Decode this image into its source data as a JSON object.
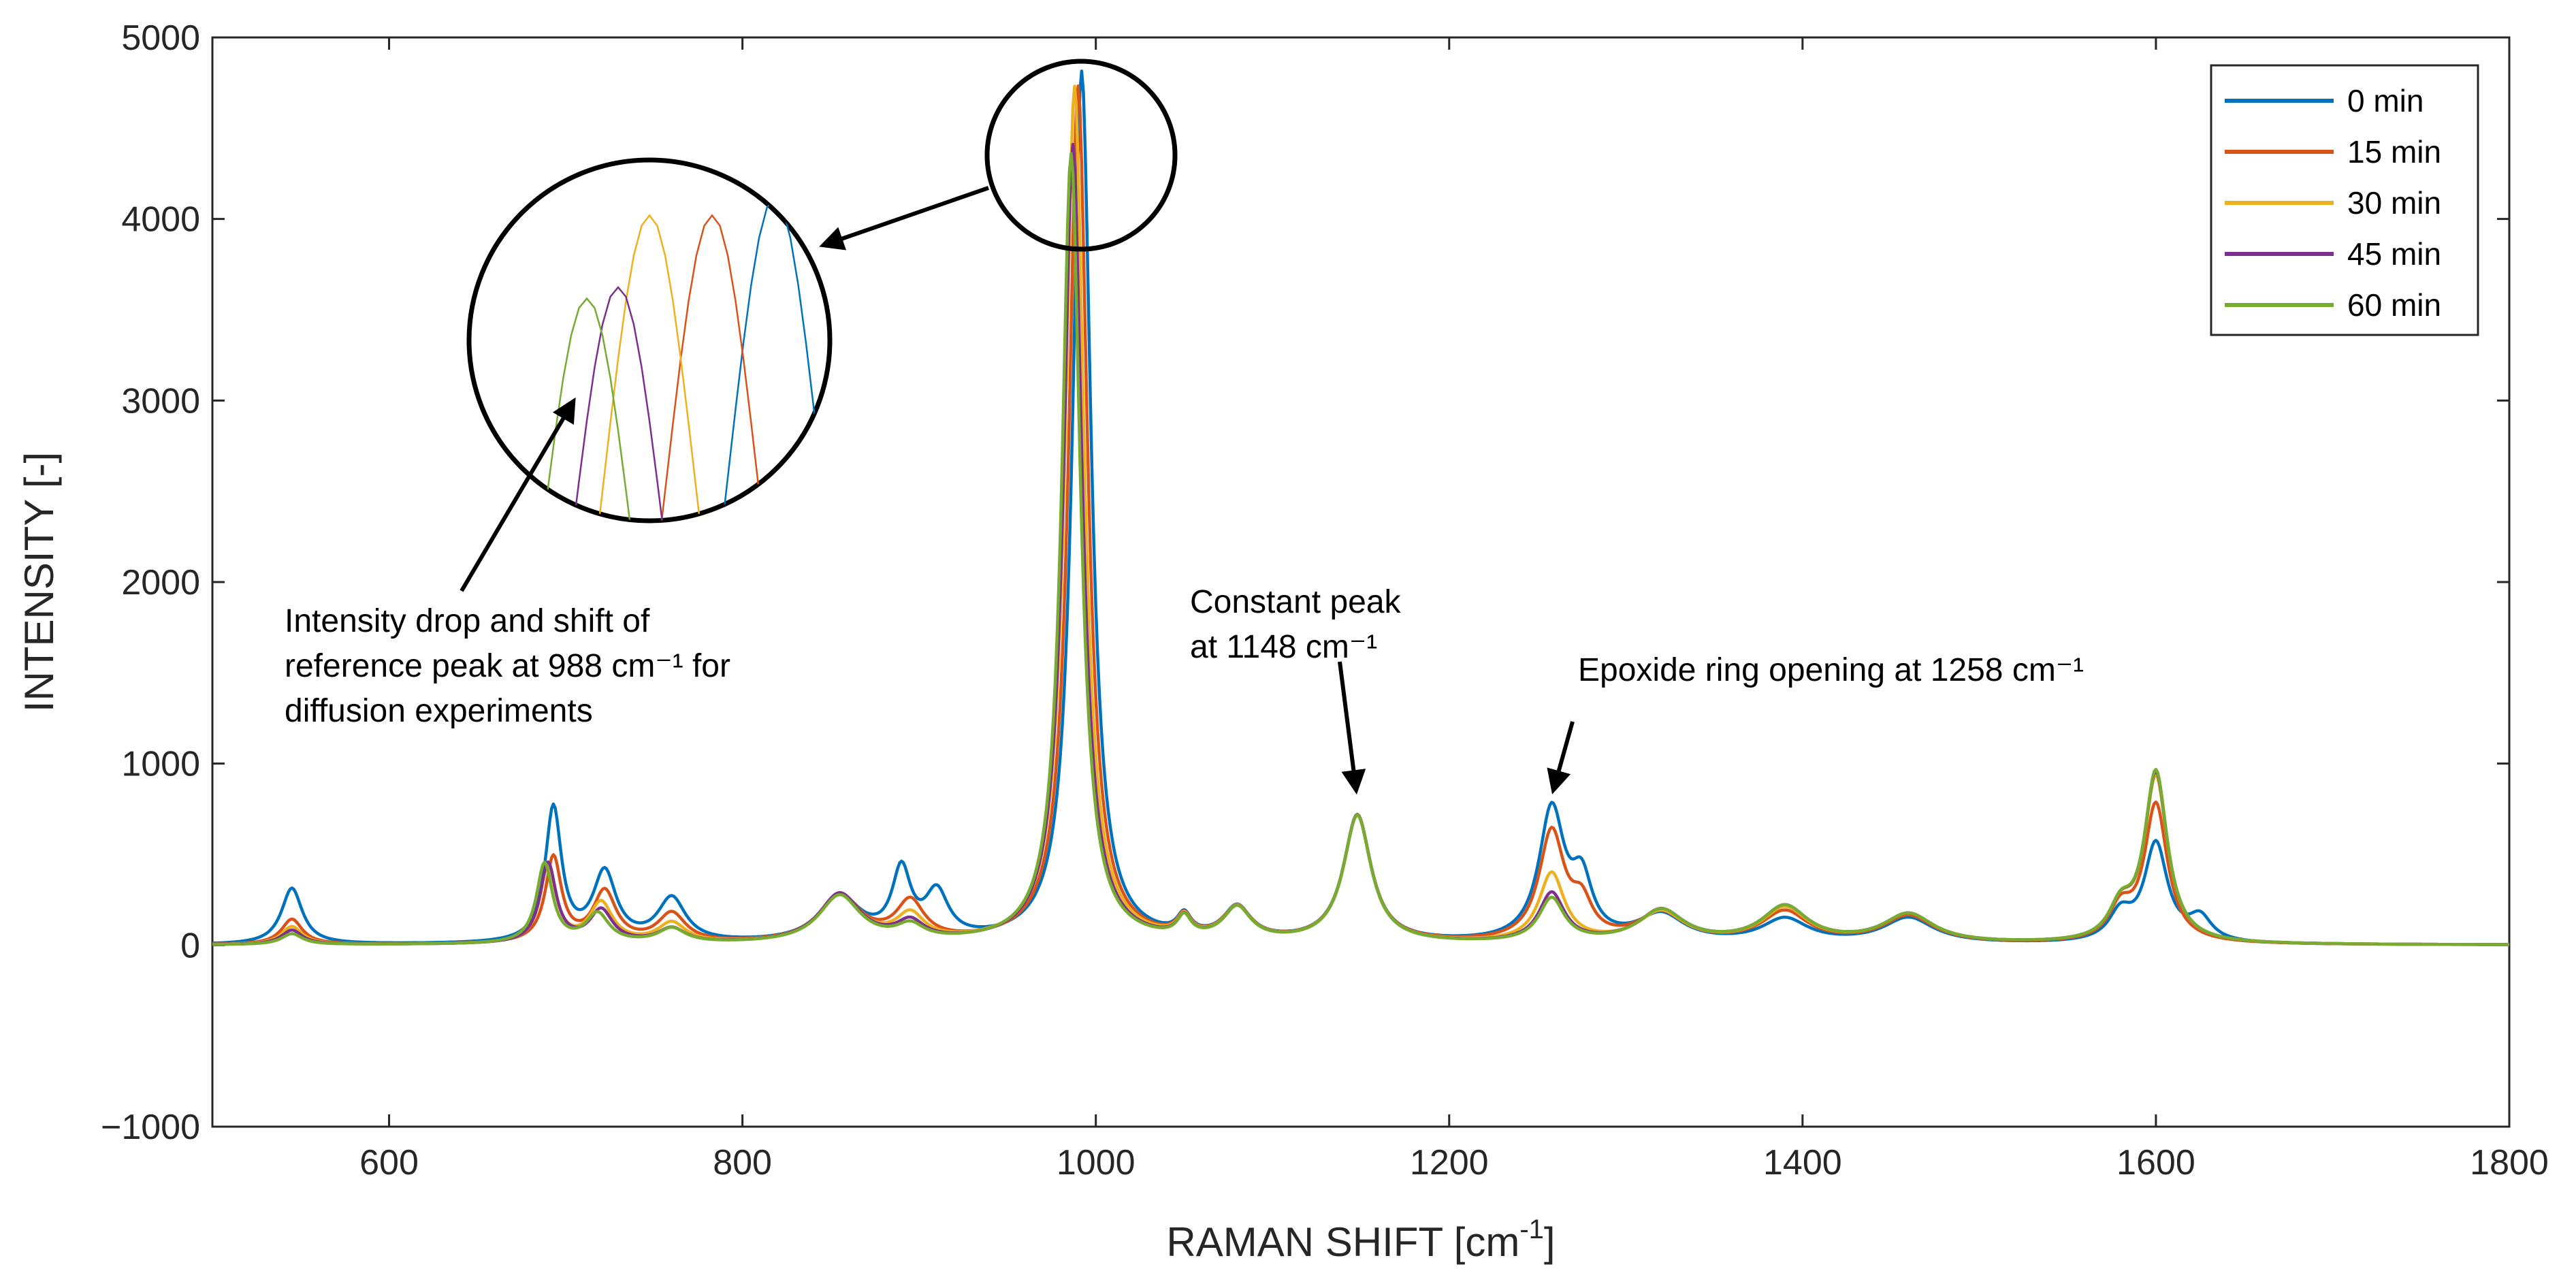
{
  "chart_data": {
    "type": "line",
    "title": "",
    "xlabel": "RAMAN SHIFT [cm",
    "xlabel_superscript": "-1",
    "xlabel_close": "]",
    "ylabel": "INTENSITY [-]",
    "xlim": [
      500,
      1800
    ],
    "ylim": [
      -1000,
      5000
    ],
    "x_ticks": [
      600,
      800,
      1000,
      1200,
      1400,
      1600,
      1800
    ],
    "y_ticks": [
      -1000,
      0,
      1000,
      2000,
      3000,
      4000,
      5000
    ],
    "x_tick_labels": [
      "600",
      "800",
      "1000",
      "1200",
      "1400",
      "1600",
      "1800"
    ],
    "y_tick_labels": [
      "−1000",
      "0",
      "1000",
      "2000",
      "3000",
      "4000",
      "5000"
    ],
    "legend_position": "top-right",
    "series": [
      {
        "name": "0 min",
        "color": "#0072BD",
        "peak_shift": 3,
        "peaks": [
          [
            545,
            310,
            9
          ],
          [
            693,
            740,
            7
          ],
          [
            722,
            380,
            10
          ],
          [
            760,
            240,
            12
          ],
          [
            855,
            250,
            18
          ],
          [
            890,
            370,
            8
          ],
          [
            910,
            250,
            10
          ],
          [
            992,
            4800,
            8
          ],
          [
            1050,
            110,
            6
          ],
          [
            1080,
            180,
            12
          ],
          [
            1148,
            700,
            12
          ],
          [
            1258,
            720,
            11
          ],
          [
            1275,
            300,
            9
          ],
          [
            1320,
            150,
            20
          ],
          [
            1390,
            130,
            20
          ],
          [
            1460,
            140,
            22
          ],
          [
            1580,
            150,
            10
          ],
          [
            1600,
            540,
            10
          ],
          [
            1625,
            130,
            10
          ]
        ]
      },
      {
        "name": "15 min",
        "color": "#D95319",
        "peak_shift": 1,
        "peaks": [
          [
            545,
            140,
            9
          ],
          [
            693,
            470,
            7
          ],
          [
            722,
            280,
            10
          ],
          [
            760,
            160,
            12
          ],
          [
            855,
            260,
            18
          ],
          [
            895,
            210,
            12
          ],
          [
            990,
            4720,
            8
          ],
          [
            1050,
            110,
            6
          ],
          [
            1080,
            180,
            12
          ],
          [
            1148,
            700,
            12
          ],
          [
            1258,
            600,
            11
          ],
          [
            1275,
            180,
            9
          ],
          [
            1320,
            160,
            20
          ],
          [
            1390,
            170,
            20
          ],
          [
            1460,
            150,
            22
          ],
          [
            1580,
            170,
            10
          ],
          [
            1600,
            760,
            10
          ]
        ]
      },
      {
        "name": "30 min",
        "color": "#EDB120",
        "peak_shift": -1,
        "peaks": [
          [
            545,
            100,
            9
          ],
          [
            690,
            420,
            7
          ],
          [
            720,
            220,
            10
          ],
          [
            760,
            110,
            12
          ],
          [
            855,
            260,
            18
          ],
          [
            895,
            140,
            12
          ],
          [
            988,
            4720,
            8
          ],
          [
            1050,
            110,
            6
          ],
          [
            1080,
            180,
            12
          ],
          [
            1148,
            700,
            12
          ],
          [
            1258,
            380,
            11
          ],
          [
            1320,
            170,
            20
          ],
          [
            1390,
            190,
            20
          ],
          [
            1460,
            160,
            22
          ],
          [
            1580,
            170,
            10
          ],
          [
            1600,
            910,
            10
          ]
        ]
      },
      {
        "name": "45 min",
        "color": "#7E2F8E",
        "peak_shift": -2,
        "peaks": [
          [
            545,
            80,
            9
          ],
          [
            690,
            440,
            7
          ],
          [
            720,
            180,
            10
          ],
          [
            760,
            80,
            12
          ],
          [
            855,
            270,
            18
          ],
          [
            895,
            100,
            12
          ],
          [
            987,
            4400,
            8
          ],
          [
            1050,
            110,
            6
          ],
          [
            1080,
            180,
            12
          ],
          [
            1148,
            700,
            12
          ],
          [
            1258,
            270,
            11
          ],
          [
            1320,
            180,
            20
          ],
          [
            1390,
            200,
            20
          ],
          [
            1460,
            160,
            22
          ],
          [
            1580,
            170,
            10
          ],
          [
            1600,
            930,
            10
          ]
        ]
      },
      {
        "name": "60 min",
        "color": "#77AC30",
        "peak_shift": -3,
        "peaks": [
          [
            545,
            60,
            9
          ],
          [
            688,
            440,
            7
          ],
          [
            718,
            160,
            10
          ],
          [
            760,
            80,
            12
          ],
          [
            855,
            260,
            18
          ],
          [
            895,
            80,
            12
          ],
          [
            986,
            4350,
            8
          ],
          [
            1050,
            110,
            6
          ],
          [
            1080,
            180,
            12
          ],
          [
            1148,
            700,
            12
          ],
          [
            1258,
            240,
            11
          ],
          [
            1320,
            180,
            20
          ],
          [
            1390,
            200,
            20
          ],
          [
            1460,
            160,
            22
          ],
          [
            1580,
            170,
            10
          ],
          [
            1600,
            940,
            10
          ]
        ]
      }
    ],
    "annotations": {
      "reference_peak": {
        "lines": [
          "Intensity drop and shift of",
          "reference peak at 988 cm⁻¹ for",
          "diffusion experiments"
        ],
        "points_to_x": 988,
        "points_to_y": 4500
      },
      "constant_peak": {
        "lines": [
          "Constant peak",
          "at 1148 cm⁻¹"
        ],
        "points_to_x": 1148,
        "points_to_y": 780
      },
      "epoxide_peak": {
        "lines": [
          "Epoxide ring opening at 1258 cm⁻¹"
        ],
        "points_to_x": 1258,
        "points_to_y": 800
      }
    }
  }
}
